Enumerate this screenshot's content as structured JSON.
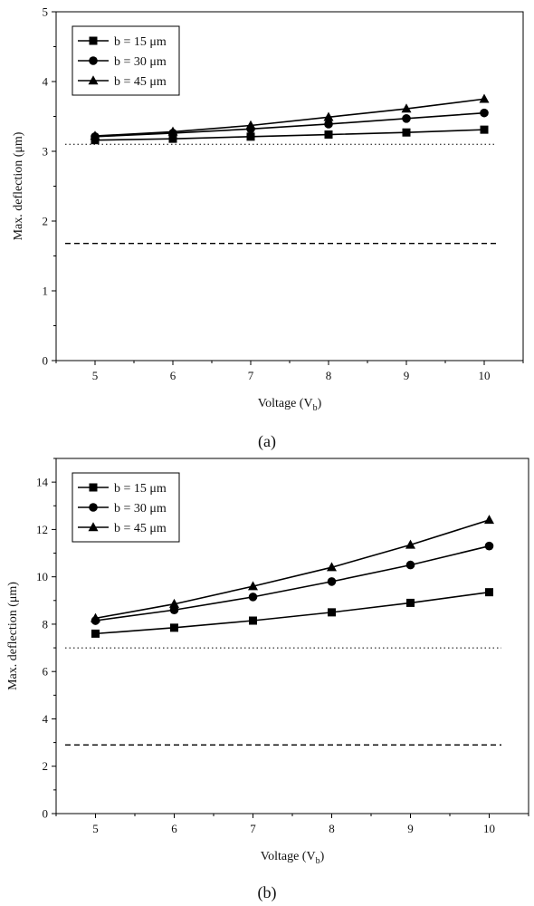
{
  "chart_data": [
    {
      "type": "line",
      "caption": "(a)",
      "x": [
        5,
        6,
        7,
        8,
        9,
        10
      ],
      "xlabel": "Voltage (V",
      "xlabel_sub": "b",
      "xlabel_close": ")",
      "ylabel": "Max. deflection (μm)",
      "xlim": [
        4.5,
        10.5
      ],
      "ylim": [
        0,
        5
      ],
      "xticks": [
        "5",
        "6",
        "7",
        "8",
        "9",
        "10"
      ],
      "yticks": [
        "0",
        "1",
        "2",
        "3",
        "4",
        "5"
      ],
      "grid": false,
      "legend_position": "top-left",
      "series": [
        {
          "name": "b = 15 μm",
          "marker": "square",
          "values": [
            3.16,
            3.18,
            3.21,
            3.24,
            3.27,
            3.31
          ]
        },
        {
          "name": "b = 30 μm",
          "marker": "circle",
          "values": [
            3.21,
            3.26,
            3.32,
            3.39,
            3.47,
            3.55
          ]
        },
        {
          "name": "b = 45 μm",
          "marker": "triangle",
          "values": [
            3.22,
            3.28,
            3.37,
            3.49,
            3.61,
            3.75
          ]
        }
      ],
      "reference_lines": [
        {
          "style": "dotted",
          "y": 3.1
        },
        {
          "style": "dashed",
          "y": 1.68
        }
      ]
    },
    {
      "type": "line",
      "caption": "(b)",
      "x": [
        5,
        6,
        7,
        8,
        9,
        10
      ],
      "xlabel": "Voltage (V",
      "xlabel_sub": "b",
      "xlabel_close": ")",
      "ylabel": "Max. deflection (μm)",
      "xlim": [
        4.5,
        10.5
      ],
      "ylim": [
        0,
        15
      ],
      "xticks": [
        "5",
        "6",
        "7",
        "8",
        "9",
        "10"
      ],
      "yticks": [
        "0",
        "2",
        "4",
        "6",
        "8",
        "10",
        "12",
        "14"
      ],
      "grid": false,
      "legend_position": "top-left",
      "series": [
        {
          "name": "b = 15 μm",
          "marker": "square",
          "values": [
            7.6,
            7.85,
            8.15,
            8.5,
            8.9,
            9.35
          ]
        },
        {
          "name": "b = 30 μm",
          "marker": "circle",
          "values": [
            8.15,
            8.6,
            9.15,
            9.8,
            10.5,
            11.3
          ]
        },
        {
          "name": "b = 45 μm",
          "marker": "triangle",
          "values": [
            8.25,
            8.85,
            9.6,
            10.4,
            11.35,
            12.4
          ]
        }
      ],
      "reference_lines": [
        {
          "style": "dotted",
          "y": 7.0
        },
        {
          "style": "dashed",
          "y": 2.9
        }
      ]
    }
  ]
}
